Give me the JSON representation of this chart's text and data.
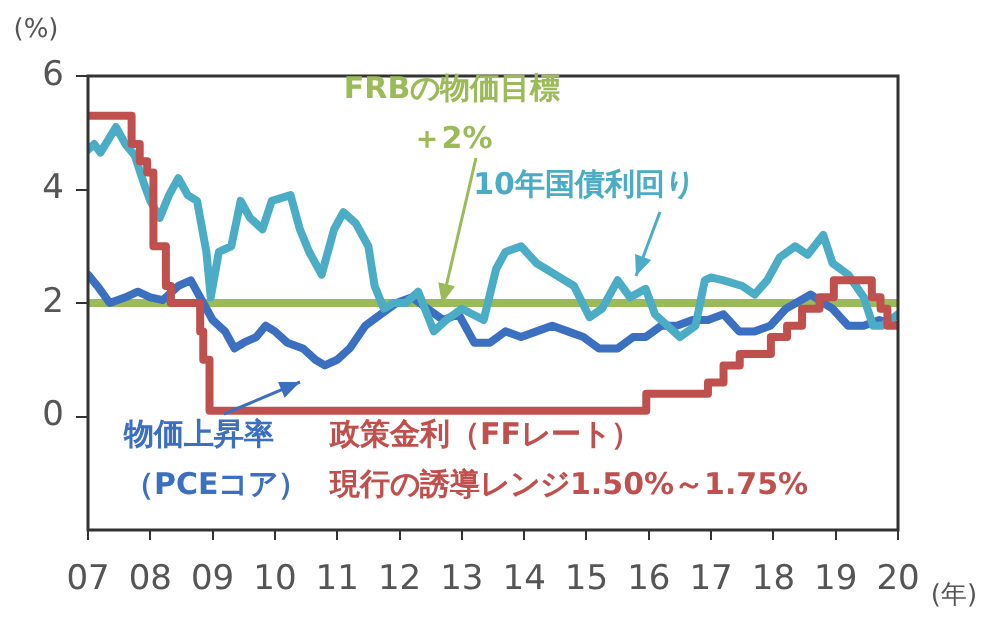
{
  "chart_data": {
    "type": "line",
    "ylabel": "(%)",
    "xlabel": "(年)",
    "marker": "none",
    "xlim": [
      2007,
      2020
    ],
    "xticks": [
      {
        "value": 2007,
        "label": "07"
      },
      {
        "value": 2008,
        "label": "08"
      },
      {
        "value": 2009,
        "label": "09"
      },
      {
        "value": 2010,
        "label": "10"
      },
      {
        "value": 2011,
        "label": "11"
      },
      {
        "value": 2012,
        "label": "12"
      },
      {
        "value": 2013,
        "label": "13"
      },
      {
        "value": 2014,
        "label": "14"
      },
      {
        "value": 2015,
        "label": "15"
      },
      {
        "value": 2016,
        "label": "16"
      },
      {
        "value": 2017,
        "label": "17"
      },
      {
        "value": 2018,
        "label": "18"
      },
      {
        "value": 2019,
        "label": "19"
      },
      {
        "value": 2020,
        "label": "20"
      }
    ],
    "ylim": [
      -2,
      6
    ],
    "yticks": [
      0,
      2,
      4,
      6
    ],
    "ref_lines": [
      {
        "axis": "y",
        "value": 2,
        "label": "FRBの物価目標＋2%",
        "color": "#9bbb59"
      }
    ],
    "series": [
      {
        "name": "政策金利（FFレート）現行の誘導レンジ1.50%～1.75%",
        "type": "step",
        "color": "#c0504d",
        "x": [
          2007.0,
          2007.7,
          2007.83,
          2007.95,
          2008.05,
          2008.25,
          2008.33,
          2008.8,
          2008.85,
          2008.95,
          2015.96,
          2016.95,
          2017.2,
          2017.46,
          2017.96,
          2018.22,
          2018.46,
          2018.74,
          2018.97,
          2019.58,
          2019.72,
          2019.83,
          2020.0
        ],
        "values": [
          5.3,
          4.8,
          4.5,
          4.3,
          3.0,
          2.3,
          2.0,
          1.5,
          1.0,
          0.1,
          0.4,
          0.6,
          0.9,
          1.1,
          1.4,
          1.6,
          1.9,
          2.1,
          2.4,
          2.1,
          1.9,
          1.6,
          1.6
        ]
      },
      {
        "name": "10年国債利回り",
        "type": "line",
        "color": "#4bacc6",
        "x": [
          2007.0,
          2007.1,
          2007.2,
          2007.45,
          2007.6,
          2007.75,
          2007.9,
          2008.0,
          2008.15,
          2008.3,
          2008.45,
          2008.6,
          2008.75,
          2008.9,
          2008.97,
          2009.1,
          2009.3,
          2009.45,
          2009.6,
          2009.8,
          2009.95,
          2010.25,
          2010.4,
          2010.55,
          2010.75,
          2010.95,
          2011.1,
          2011.3,
          2011.5,
          2011.6,
          2011.75,
          2011.9,
          2012.1,
          2012.3,
          2012.55,
          2012.75,
          2013.0,
          2013.35,
          2013.55,
          2013.7,
          2013.95,
          2014.2,
          2014.5,
          2014.8,
          2015.05,
          2015.25,
          2015.5,
          2015.7,
          2015.95,
          2016.1,
          2016.5,
          2016.75,
          2016.9,
          2017.0,
          2017.2,
          2017.5,
          2017.7,
          2017.9,
          2018.1,
          2018.35,
          2018.55,
          2018.8,
          2018.95,
          2019.2,
          2019.45,
          2019.6,
          2019.75,
          2020.0
        ],
        "values": [
          4.7,
          4.8,
          4.65,
          5.1,
          4.8,
          4.6,
          4.1,
          3.8,
          3.5,
          3.9,
          4.2,
          3.9,
          3.8,
          2.9,
          2.1,
          2.9,
          3.0,
          3.8,
          3.5,
          3.3,
          3.8,
          3.9,
          3.3,
          2.9,
          2.5,
          3.3,
          3.6,
          3.4,
          3.0,
          2.3,
          1.9,
          2.0,
          2.0,
          2.2,
          1.5,
          1.7,
          1.9,
          1.7,
          2.6,
          2.9,
          3.0,
          2.7,
          2.5,
          2.3,
          1.75,
          1.9,
          2.4,
          2.1,
          2.25,
          1.8,
          1.4,
          1.6,
          2.4,
          2.45,
          2.4,
          2.3,
          2.15,
          2.4,
          2.8,
          3.0,
          2.85,
          3.2,
          2.7,
          2.5,
          2.1,
          1.6,
          1.6,
          1.8
        ]
      },
      {
        "name": "物価上昇率（PCEコア）",
        "type": "line",
        "color": "#3b6fc0",
        "x": [
          2007.0,
          2007.15,
          2007.35,
          2007.6,
          2007.8,
          2008.0,
          2008.2,
          2008.45,
          2008.65,
          2008.85,
          2009.0,
          2009.2,
          2009.35,
          2009.5,
          2009.7,
          2009.85,
          2010.0,
          2010.2,
          2010.45,
          2010.65,
          2010.8,
          2011.0,
          2011.2,
          2011.45,
          2011.7,
          2011.95,
          2012.2,
          2012.45,
          2012.7,
          2012.95,
          2013.2,
          2013.45,
          2013.7,
          2013.95,
          2014.2,
          2014.45,
          2014.7,
          2014.95,
          2015.2,
          2015.5,
          2015.75,
          2015.95,
          2016.2,
          2016.45,
          2016.7,
          2016.95,
          2017.2,
          2017.45,
          2017.7,
          2017.95,
          2018.2,
          2018.6,
          2018.8,
          2018.95,
          2019.2,
          2019.45,
          2019.7,
          2020.0
        ],
        "values": [
          2.5,
          2.3,
          2.0,
          2.1,
          2.2,
          2.1,
          2.05,
          2.3,
          2.4,
          2.0,
          1.7,
          1.5,
          1.2,
          1.3,
          1.4,
          1.6,
          1.5,
          1.3,
          1.2,
          1.0,
          0.9,
          1.0,
          1.2,
          1.6,
          1.8,
          2.0,
          2.1,
          1.9,
          1.7,
          1.8,
          1.3,
          1.3,
          1.5,
          1.4,
          1.5,
          1.6,
          1.5,
          1.4,
          1.2,
          1.2,
          1.4,
          1.4,
          1.6,
          1.6,
          1.7,
          1.7,
          1.8,
          1.5,
          1.5,
          1.6,
          1.9,
          2.15,
          2.0,
          1.9,
          1.6,
          1.6,
          1.7,
          1.6
        ]
      }
    ]
  }
}
